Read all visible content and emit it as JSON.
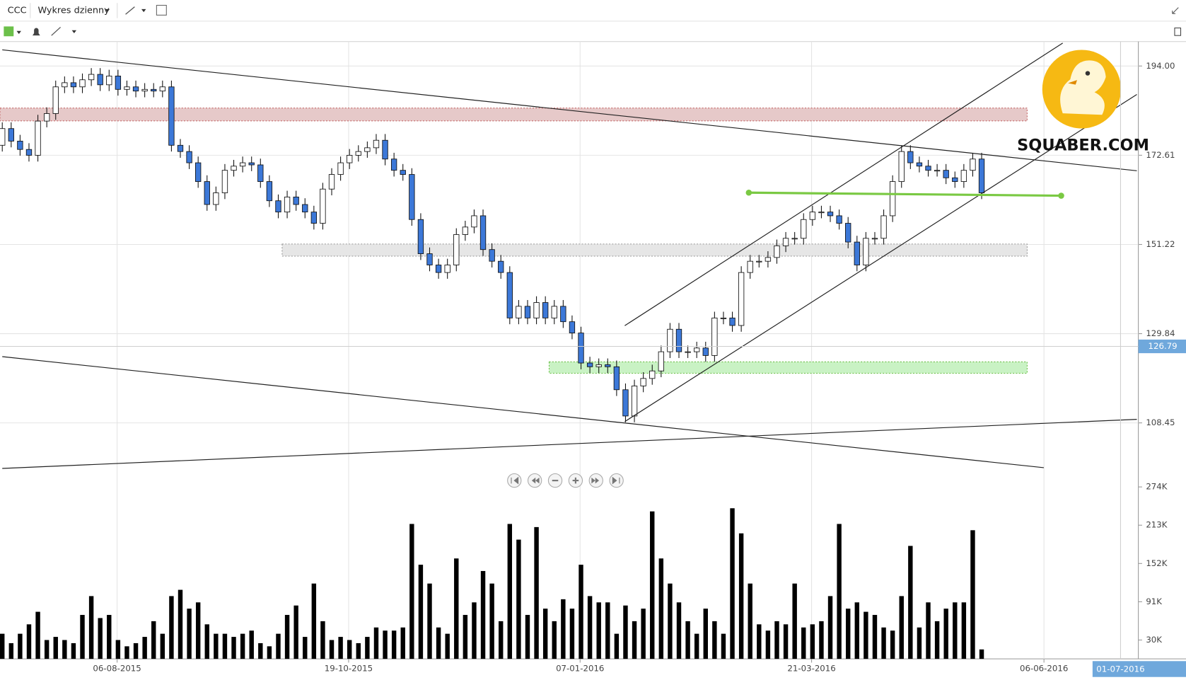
{
  "chart_data": {
    "type": "candlestick",
    "title": "CCC",
    "subtitle": "Wykres dzienny",
    "watermark": "SQUABER.COM",
    "up_color": "#ffffff",
    "down_color": "#3c78d8",
    "x": [
      0,
      1,
      2,
      3,
      4,
      5,
      6,
      7,
      8,
      9,
      10,
      11,
      12,
      13,
      14,
      15,
      16,
      17,
      18,
      19,
      20,
      21,
      22,
      23,
      24,
      25,
      26,
      27,
      28,
      29,
      30,
      31,
      32,
      33,
      34,
      35,
      36,
      37,
      38,
      39,
      40,
      41,
      42,
      43,
      44,
      45,
      46,
      47,
      48,
      49,
      50,
      51,
      52,
      53,
      54,
      55,
      56,
      57,
      58,
      59,
      60,
      61,
      62,
      63,
      64,
      65,
      66,
      67,
      68,
      69,
      70,
      71,
      72,
      73,
      74,
      75,
      76,
      77,
      78,
      79,
      80,
      81,
      82,
      83,
      84,
      85,
      86,
      87,
      88,
      89,
      90,
      91,
      92,
      93,
      94,
      95,
      96,
      97,
      98,
      99,
      100,
      101,
      102,
      103,
      104,
      105,
      106,
      107,
      108,
      109,
      110
    ],
    "open": [
      175,
      179,
      176,
      174,
      172.6,
      180.8,
      182.6,
      189,
      190,
      189,
      190.7,
      192,
      189.5,
      191.6,
      188.4,
      189,
      188,
      188.4,
      188,
      189,
      175,
      173.5,
      170.8,
      166.3,
      160.8,
      163.6,
      169,
      170,
      170.8,
      170.3,
      166.3,
      161.7,
      159,
      162.6,
      160.8,
      159,
      156.3,
      164.5,
      168,
      170.8,
      172.6,
      173.5,
      174.4,
      176.2,
      171.7,
      169,
      168,
      157.2,
      149,
      146.3,
      144.5,
      146.3,
      153.6,
      155.4,
      158.1,
      150,
      147.2,
      144.5,
      133.6,
      136.4,
      133.6,
      137.3,
      133.6,
      136.4,
      132.7,
      130,
      122.8,
      121.9,
      122.4,
      121.9,
      116.4,
      110.1,
      117.3,
      119.1,
      120.9,
      125.5,
      130.9,
      125.5,
      125.5,
      126.4,
      124.6,
      133.6,
      133.6,
      131.8,
      144.5,
      147.2,
      147.2,
      148.1,
      150.9,
      152.7,
      152.7,
      157.2,
      159,
      159,
      158.1,
      156.3,
      151.8,
      146.3,
      152.7,
      152.7,
      158.1,
      166.3,
      173.5,
      170.8,
      170,
      169,
      169,
      167.2,
      166.3,
      169,
      171.7
    ],
    "high": [
      180.5,
      180.5,
      177.5,
      175.5,
      182.3,
      184.1,
      190.5,
      191.5,
      191.5,
      192.2,
      193.5,
      193.5,
      193.1,
      193.1,
      190.5,
      190.5,
      189.9,
      189.9,
      190.5,
      190.5,
      176.5,
      175,
      172.3,
      167.8,
      165.1,
      170.5,
      171.5,
      172.3,
      172.3,
      171.8,
      167.8,
      163.2,
      164.1,
      164.1,
      162.3,
      160.5,
      166,
      169.5,
      172.3,
      174.1,
      175,
      175.9,
      177.7,
      177.7,
      173.2,
      170.5,
      169.5,
      158.7,
      150.5,
      147.8,
      147.8,
      155.1,
      156.9,
      159.6,
      159.6,
      151.5,
      148.7,
      146,
      137.9,
      137.9,
      138.8,
      138.8,
      137.9,
      137.9,
      134.2,
      131.5,
      124.3,
      123.9,
      123.9,
      123.4,
      117.9,
      118.8,
      120.6,
      122.4,
      127,
      132.4,
      132.4,
      127,
      127.9,
      127.9,
      135.1,
      135.1,
      135.1,
      146,
      148.7,
      148.7,
      149.6,
      152.4,
      154.2,
      154.2,
      158.7,
      160.5,
      160.5,
      160.5,
      159.6,
      157.8,
      153.3,
      154.2,
      154.2,
      159.6,
      167.8,
      175,
      175,
      172.3,
      171.5,
      170.5,
      170.5,
      168.7,
      170.5,
      173.2,
      173.2
    ],
    "low": [
      173.5,
      174.5,
      172.5,
      171.1,
      171.1,
      179.3,
      181.1,
      187.5,
      187.5,
      187.5,
      189.2,
      188,
      188,
      186.9,
      186.9,
      186.5,
      186.5,
      186.5,
      186.5,
      173.5,
      172,
      169.3,
      164.8,
      159.3,
      159.3,
      162.1,
      167.5,
      168.5,
      168.8,
      164.8,
      160.2,
      157.5,
      157.5,
      159.3,
      157.5,
      154.8,
      154.8,
      163,
      166.5,
      169.3,
      171.1,
      172,
      172.9,
      170.2,
      167.5,
      166.5,
      155.7,
      147.5,
      144.8,
      143,
      143,
      144.8,
      152.1,
      153.9,
      148.5,
      145.7,
      143,
      132.1,
      132.1,
      132.1,
      132.1,
      132.1,
      132.1,
      131.2,
      128.5,
      121.3,
      120.4,
      120.4,
      120.4,
      114.9,
      108.6,
      108.6,
      115.8,
      117.6,
      119.4,
      124,
      124,
      124,
      124,
      123.1,
      123.1,
      132.1,
      130.3,
      130.3,
      143,
      145.7,
      145.7,
      146.6,
      149.4,
      151.2,
      151.2,
      155.7,
      157.5,
      156.6,
      154.8,
      150.3,
      144.8,
      144.8,
      151.2,
      151.2,
      156.6,
      164.8,
      169.3,
      168.5,
      167.5,
      167.5,
      165.7,
      164.8,
      164.8,
      167.5,
      162.1
    ],
    "close": [
      179,
      176,
      174,
      172.6,
      180.8,
      182.6,
      189,
      190,
      189,
      190.7,
      192,
      189.5,
      191.6,
      188.4,
      189,
      188,
      188.4,
      188,
      189,
      175,
      173.5,
      170.8,
      166.3,
      160.8,
      163.6,
      169,
      170,
      170.8,
      170.3,
      166.3,
      161.7,
      159,
      162.6,
      160.8,
      159,
      156.3,
      164.5,
      168,
      170.8,
      172.6,
      173.5,
      174.4,
      176.2,
      171.7,
      169,
      168,
      157.2,
      149,
      146.3,
      144.5,
      146.3,
      153.6,
      155.4,
      158.1,
      150,
      147.2,
      144.5,
      133.6,
      136.4,
      133.6,
      137.3,
      133.6,
      136.4,
      132.7,
      130,
      122.8,
      121.9,
      122.4,
      121.9,
      116.4,
      110.1,
      117.3,
      119.1,
      120.9,
      125.5,
      130.9,
      125.5,
      125.5,
      126.4,
      124.6,
      133.6,
      133.6,
      131.8,
      144.5,
      147.2,
      147.2,
      148.1,
      150.9,
      152.7,
      152.7,
      157.2,
      159,
      159,
      158.1,
      156.3,
      151.8,
      146.3,
      152.7,
      152.7,
      158.1,
      166.3,
      173.5,
      170.8,
      170,
      169,
      169,
      167.2,
      166.3,
      169,
      171.7,
      163.6
    ],
    "xlim": [
      -0.255,
      127.6
    ],
    "xticks": [
      {
        "value": 12.9,
        "label": "06-08-2015"
      },
      {
        "value": 38.9,
        "label": "19-10-2015"
      },
      {
        "value": 64.9,
        "label": "07-01-2016"
      },
      {
        "value": 90.9,
        "label": "21-03-2016"
      },
      {
        "value": 117,
        "label": "06-06-2016"
      }
    ],
    "cursor_date": {
      "value": 125.6,
      "label": "01-07-2016"
    },
    "ylim": [
      93,
      199.5
    ],
    "yticks": [
      {
        "value": 108.45,
        "label": "108.45"
      },
      {
        "value": 129.84,
        "label": "129.84"
      },
      {
        "value": 151.22,
        "label": "151.22"
      },
      {
        "value": 172.61,
        "label": "172.61"
      },
      {
        "value": 194,
        "label": "194.00"
      }
    ],
    "cursor_price": 126.79,
    "grid": true,
    "volume": {
      "color": "#000000",
      "values": [
        40000,
        25000,
        40000,
        55000,
        75000,
        30000,
        35000,
        30000,
        25000,
        70000,
        100000,
        65000,
        70000,
        30000,
        20000,
        25000,
        35000,
        60000,
        40000,
        100000,
        110000,
        80000,
        90000,
        55000,
        40000,
        40000,
        35000,
        40000,
        45000,
        25000,
        20000,
        40000,
        70000,
        85000,
        35000,
        120000,
        60000,
        30000,
        35000,
        30000,
        25000,
        35000,
        50000,
        45000,
        45000,
        50000,
        215000,
        150000,
        120000,
        50000,
        40000,
        160000,
        70000,
        90000,
        140000,
        120000,
        60000,
        215000,
        190000,
        70000,
        210000,
        80000,
        60000,
        95000,
        80000,
        150000,
        100000,
        90000,
        90000,
        40000,
        85000,
        60000,
        80000,
        235000,
        160000,
        120000,
        90000,
        60000,
        40000,
        80000,
        60000,
        40000,
        240000,
        200000,
        120000,
        55000,
        45000,
        60000,
        55000,
        120000,
        50000,
        55000,
        60000,
        100000,
        215000,
        80000,
        90000,
        75000,
        70000,
        50000,
        45000,
        100000,
        180000,
        50000,
        90000,
        60000,
        80000,
        90000,
        90000,
        205000,
        15000
      ],
      "ylim": [
        0,
        289000
      ],
      "yticks": [
        {
          "value": 30000,
          "label": "30K"
        },
        {
          "value": 91000,
          "label": "91K"
        },
        {
          "value": 152000,
          "label": "152K"
        },
        {
          "value": 213000,
          "label": "213K"
        },
        {
          "value": 274000,
          "label": "274K"
        }
      ]
    }
  }
}
